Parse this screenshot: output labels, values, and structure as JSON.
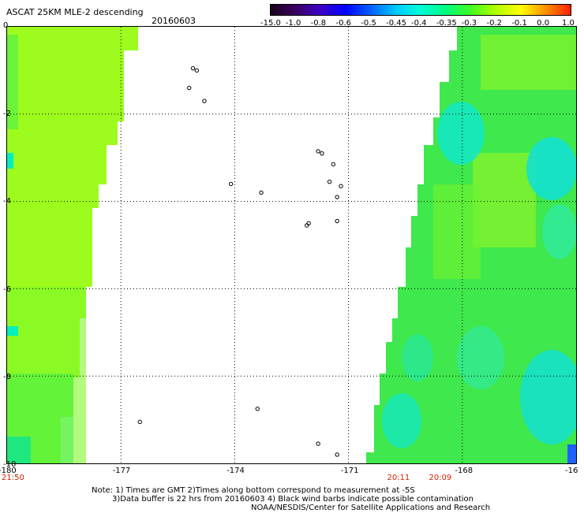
{
  "title": "ASCAT 25KM MLE-2 descending",
  "date": "20160603",
  "colorbar": {
    "labels": [
      "-15.0",
      "-1.0",
      "-0.8",
      "-0.6",
      "-0.5",
      "-0.45",
      "-0.4",
      "-0.35",
      "-0.3",
      "-0.2",
      "-0.1",
      "0.0",
      "1.0"
    ],
    "colors": [
      "#1a001a",
      "#3a0060",
      "#3c00c8",
      "#0000ff",
      "#0060ff",
      "#00c8ff",
      "#00ffd8",
      "#00ff80",
      "#40ff20",
      "#b0ff00",
      "#ffff00",
      "#ff9000",
      "#ff2000"
    ]
  },
  "axes": {
    "lon_labels": [
      "-180",
      "-177",
      "-174",
      "-171",
      "-168",
      "-16"
    ],
    "lat_labels": [
      "0",
      "-2",
      "-4",
      "-6",
      "-8",
      "-10"
    ],
    "lon_range": [
      -180,
      -165
    ],
    "lat_range": [
      0,
      -10
    ]
  },
  "time_labels": [
    {
      "text": "21:50",
      "lon": -180
    },
    {
      "text": "20:11",
      "lon": -169.7
    },
    {
      "text": "20:09",
      "lon": -168.6
    }
  ],
  "notes": {
    "line1": "Note: 1) Times are GMT 2)Times along bottom correspond to measurement at -5S",
    "line2": "3)Data buffer is 22 hrs from 20160603 4) Black wind barbs indicate possible contamination",
    "line3": "NOAA/NESDIS/Center for Satellite Applications and Research"
  }
}
